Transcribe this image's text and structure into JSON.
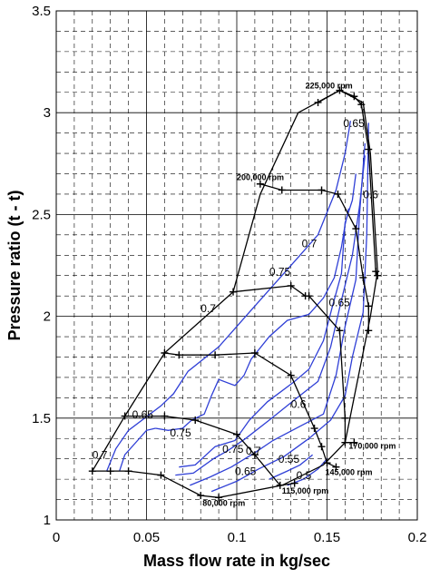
{
  "chart_data": {
    "type": "line",
    "title": "",
    "xlabel": "Mass flow rate in kg/sec",
    "ylabel": "Pressure ratio (t - t)",
    "xlim": [
      0,
      0.2
    ],
    "ylim": [
      1,
      3.5
    ],
    "x_ticks": [
      "0",
      "0.05",
      "0.1",
      "0.15",
      "0.2"
    ],
    "y_ticks": [
      "1",
      "1.5",
      "2",
      "2.5",
      "3",
      "3.5"
    ],
    "grid": true,
    "legend": "none",
    "colors": {
      "speed_lines": "#000000",
      "efficiency_contours": "#2f3fd6",
      "grid": "#000000"
    },
    "speed_lines": [
      {
        "label": "80,000 rpm",
        "points": [
          [
            0.02,
            1.24
          ],
          [
            0.03,
            1.24
          ],
          [
            0.04,
            1.24
          ],
          [
            0.058,
            1.22
          ],
          [
            0.08,
            1.12
          ],
          [
            0.09,
            1.11
          ]
        ]
      },
      {
        "label": "115,000 rpm",
        "points": [
          [
            0.038,
            1.51
          ],
          [
            0.06,
            1.51
          ],
          [
            0.077,
            1.49
          ],
          [
            0.1,
            1.42
          ],
          [
            0.11,
            1.32
          ],
          [
            0.124,
            1.17
          ],
          [
            0.132,
            1.18
          ]
        ]
      },
      {
        "label": "145,000 rpm",
        "points": [
          [
            0.06,
            1.82
          ],
          [
            0.068,
            1.81
          ],
          [
            0.088,
            1.81
          ],
          [
            0.11,
            1.82
          ],
          [
            0.13,
            1.71
          ],
          [
            0.143,
            1.45
          ],
          [
            0.147,
            1.36
          ],
          [
            0.15,
            1.28
          ],
          [
            0.155,
            1.26
          ]
        ]
      },
      {
        "label": "170,000 rpm",
        "points": [
          [
            0.098,
            2.12
          ],
          [
            0.13,
            2.15
          ],
          [
            0.138,
            2.1
          ],
          [
            0.14,
            2.1
          ],
          [
            0.157,
            1.93
          ],
          [
            0.16,
            1.5
          ],
          [
            0.16,
            1.38
          ],
          [
            0.165,
            1.38
          ]
        ]
      },
      {
        "label": "200,000 rpm",
        "points": [
          [
            0.113,
            2.65
          ],
          [
            0.125,
            2.62
          ],
          [
            0.147,
            2.62
          ],
          [
            0.156,
            2.6
          ],
          [
            0.166,
            2.43
          ],
          [
            0.17,
            2.19
          ],
          [
            0.173,
            2.05
          ],
          [
            0.173,
            1.93
          ]
        ]
      },
      {
        "label": "225,000 rpm",
        "points": [
          [
            0.145,
            3.05
          ],
          [
            0.157,
            3.11
          ],
          [
            0.165,
            3.08
          ],
          [
            0.169,
            3.04
          ],
          [
            0.173,
            2.82
          ],
          [
            0.177,
            2.22
          ],
          [
            0.178,
            2.2
          ]
        ]
      }
    ],
    "surge_line": [
      [
        0.02,
        1.24
      ],
      [
        0.038,
        1.51
      ],
      [
        0.06,
        1.82
      ],
      [
        0.098,
        2.12
      ],
      [
        0.113,
        2.6
      ],
      [
        0.134,
        3.0
      ],
      [
        0.155,
        3.1
      ]
    ],
    "choke_line": [
      [
        0.157,
        3.11
      ],
      [
        0.17,
        3.05
      ],
      [
        0.174,
        2.8
      ],
      [
        0.178,
        2.22
      ],
      [
        0.174,
        2.0
      ],
      [
        0.16,
        1.38
      ],
      [
        0.148,
        1.27
      ],
      [
        0.125,
        1.17
      ],
      [
        0.09,
        1.11
      ]
    ],
    "efficiency_contours": [
      {
        "label": "0.7",
        "points": [
          [
            0.028,
            1.24
          ],
          [
            0.033,
            1.35
          ],
          [
            0.04,
            1.44
          ],
          [
            0.058,
            1.56
          ],
          [
            0.065,
            1.62
          ],
          [
            0.073,
            1.73
          ],
          [
            0.09,
            1.85
          ],
          [
            0.105,
            2.0
          ],
          [
            0.12,
            2.15
          ],
          [
            0.135,
            2.3
          ],
          [
            0.145,
            2.4
          ],
          [
            0.155,
            2.62
          ],
          [
            0.16,
            2.8
          ],
          [
            0.163,
            2.96
          ]
        ]
      },
      {
        "label": "0.65",
        "points": [
          [
            0.035,
            1.24
          ],
          [
            0.038,
            1.32
          ],
          [
            0.045,
            1.39
          ],
          [
            0.05,
            1.44
          ],
          [
            0.055,
            1.45
          ]
        ]
      },
      {
        "label": "0.75",
        "points": [
          [
            0.055,
            1.45
          ],
          [
            0.062,
            1.44
          ],
          [
            0.07,
            1.45
          ],
          [
            0.075,
            1.49
          ],
          [
            0.082,
            1.52
          ],
          [
            0.086,
            1.61
          ],
          [
            0.09,
            1.69
          ],
          [
            0.099,
            1.66
          ],
          [
            0.104,
            1.71
          ],
          [
            0.108,
            1.79
          ],
          [
            0.118,
            1.9
          ],
          [
            0.128,
            1.98
          ],
          [
            0.14,
            2.01
          ],
          [
            0.148,
            2.09
          ],
          [
            0.154,
            2.19
          ],
          [
            0.158,
            2.34
          ],
          [
            0.16,
            2.45
          ],
          [
            0.162,
            2.53
          ]
        ]
      },
      {
        "label": "0.75",
        "points": [
          [
            0.068,
            1.26
          ],
          [
            0.077,
            1.27
          ],
          [
            0.088,
            1.36
          ],
          [
            0.099,
            1.39
          ],
          [
            0.107,
            1.49
          ],
          [
            0.117,
            1.58
          ],
          [
            0.132,
            1.68
          ],
          [
            0.14,
            1.74
          ],
          [
            0.148,
            1.88
          ],
          [
            0.153,
            2.05
          ],
          [
            0.158,
            2.21
          ],
          [
            0.16,
            2.46
          ],
          [
            0.164,
            2.57
          ],
          [
            0.166,
            2.7
          ]
        ]
      },
      {
        "label": "0.7",
        "points": [
          [
            0.066,
            1.22
          ],
          [
            0.076,
            1.23
          ],
          [
            0.087,
            1.3
          ],
          [
            0.095,
            1.34
          ],
          [
            0.105,
            1.4
          ],
          [
            0.118,
            1.49
          ],
          [
            0.132,
            1.59
          ],
          [
            0.145,
            1.68
          ],
          [
            0.152,
            1.85
          ],
          [
            0.158,
            2.08
          ],
          [
            0.164,
            2.3
          ],
          [
            0.168,
            2.54
          ],
          [
            0.171,
            2.79
          ]
        ]
      },
      {
        "label": "0.65",
        "points": [
          [
            0.074,
            1.17
          ],
          [
            0.085,
            1.21
          ],
          [
            0.097,
            1.26
          ],
          [
            0.11,
            1.33
          ],
          [
            0.12,
            1.39
          ],
          [
            0.135,
            1.46
          ],
          [
            0.148,
            1.52
          ],
          [
            0.155,
            1.71
          ],
          [
            0.16,
            1.95
          ],
          [
            0.166,
            2.18
          ],
          [
            0.168,
            2.5
          ],
          [
            0.171,
            2.85
          ]
        ]
      },
      {
        "label": "0.6",
        "points": [
          [
            0.086,
            1.14
          ],
          [
            0.1,
            1.19
          ],
          [
            0.112,
            1.25
          ],
          [
            0.126,
            1.31
          ],
          [
            0.14,
            1.4
          ],
          [
            0.152,
            1.49
          ],
          [
            0.16,
            1.61
          ],
          [
            0.164,
            1.8
          ],
          [
            0.17,
            2.02
          ],
          [
            0.172,
            2.4
          ],
          [
            0.173,
            2.95
          ]
        ]
      },
      {
        "label": "0.55",
        "points": [
          [
            0.118,
            1.2
          ],
          [
            0.128,
            1.24
          ],
          [
            0.135,
            1.27
          ],
          [
            0.142,
            1.32
          ]
        ]
      },
      {
        "label": "0.5",
        "points": [
          [
            0.128,
            1.17
          ],
          [
            0.137,
            1.2
          ],
          [
            0.145,
            1.25
          ],
          [
            0.15,
            1.3
          ]
        ]
      }
    ],
    "efficiency_labels": [
      {
        "text": "0.65",
        "x": 0.159,
        "y": 2.93
      },
      {
        "text": "0.6",
        "x": 0.17,
        "y": 2.58
      },
      {
        "text": "0.7",
        "x": 0.136,
        "y": 2.34
      },
      {
        "text": "0.65",
        "x": 0.151,
        "y": 2.05
      },
      {
        "text": "0.75",
        "x": 0.118,
        "y": 2.2
      },
      {
        "text": "0.7",
        "x": 0.08,
        "y": 2.02
      },
      {
        "text": "0.7",
        "x": 0.02,
        "y": 1.3
      },
      {
        "text": "0.65",
        "x": 0.042,
        "y": 1.5
      },
      {
        "text": "0.75",
        "x": 0.063,
        "y": 1.41
      },
      {
        "text": "0.75",
        "x": 0.092,
        "y": 1.33
      },
      {
        "text": "0.7",
        "x": 0.105,
        "y": 1.32
      },
      {
        "text": "0.65",
        "x": 0.099,
        "y": 1.22
      },
      {
        "text": "0.6",
        "x": 0.13,
        "y": 1.55
      },
      {
        "text": "0.55",
        "x": 0.123,
        "y": 1.28
      },
      {
        "text": "0.5",
        "x": 0.133,
        "y": 1.2
      }
    ],
    "speed_labels": [
      {
        "text": "225,000 rpm",
        "x": 0.138,
        "y": 3.12
      },
      {
        "text": "200,000 rpm",
        "x": 0.1,
        "y": 2.67
      },
      {
        "text": "170,000 rpm",
        "x": 0.162,
        "y": 1.35
      },
      {
        "text": "145,000 rpm",
        "x": 0.149,
        "y": 1.22
      },
      {
        "text": "115,000 rpm",
        "x": 0.125,
        "y": 1.13
      },
      {
        "text": "80,000 rpm",
        "x": 0.081,
        "y": 1.07
      }
    ]
  }
}
